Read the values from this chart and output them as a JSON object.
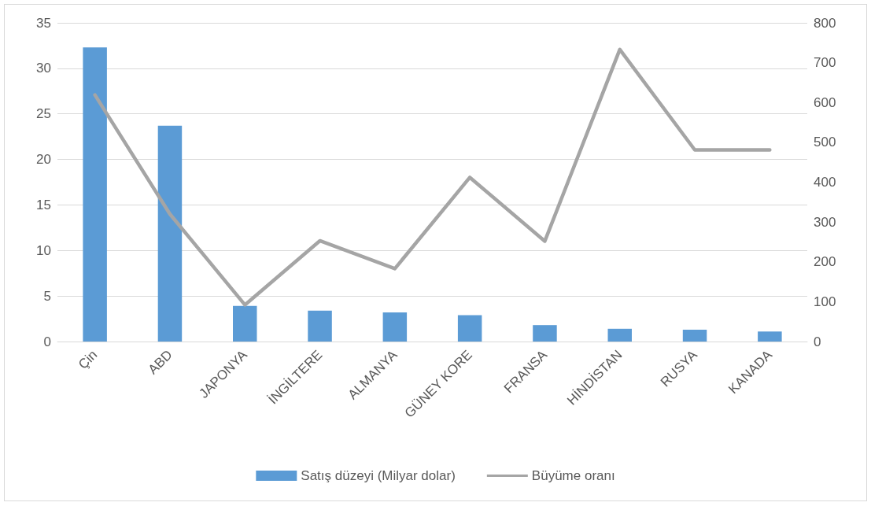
{
  "chart_data": {
    "type": "bar",
    "categories": [
      "Çin",
      "ABD",
      "JAPONYA",
      "İNGİLTERE",
      "ALMANYA",
      "GÜNEY KORE",
      "FRANSA",
      "HİNDİSTAN",
      "RUSYA",
      "KANADA"
    ],
    "series": [
      {
        "name": "Satış düzeyi (Milyar dolar)",
        "color": "#5b9bd5",
        "values": [
          32.3,
          23.7,
          3.9,
          3.4,
          3.2,
          2.9,
          1.8,
          1.4,
          1.3,
          1.1
        ]
      },
      {
        "name": "Büyüme oranı",
        "type": "line",
        "axis": "y2",
        "color": "#a5a5a5",
        "values": [
          619,
          320,
          92,
          253,
          183,
          412,
          252,
          733,
          481,
          481
        ]
      }
    ],
    "ylim": [
      0,
      35
    ],
    "yticks": [
      0,
      5,
      10,
      15,
      20,
      25,
      30,
      35
    ],
    "y2lim": [
      0,
      800
    ],
    "y2ticks": [
      0,
      100,
      200,
      300,
      400,
      500,
      600,
      700,
      800
    ],
    "grid": "y",
    "legend": "bottom",
    "marker": "none",
    "line_style": "solid"
  }
}
